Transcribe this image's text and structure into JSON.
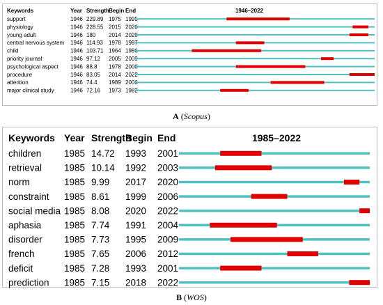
{
  "colors": {
    "baseline": "#4fc1c0",
    "burst": "#e00000"
  },
  "panels": [
    {
      "id": "a",
      "caption_letter": "A",
      "caption_source": "Scopus",
      "headers": {
        "keywords": "Keywords",
        "year": "Year",
        "strength": "Strength",
        "begin": "Begin",
        "end": "End",
        "range": "1946–2022"
      },
      "range_start": 1946,
      "range_end": 2022,
      "rows": [
        {
          "keyword": "support",
          "year": "1946",
          "strength": "229.89",
          "begin": "1975",
          "end": "1995"
        },
        {
          "keyword": "physiology",
          "year": "1946",
          "strength": "228.55",
          "begin": "2015",
          "end": "2020"
        },
        {
          "keyword": "young adult",
          "year": "1946",
          "strength": "180",
          "begin": "2014",
          "end": "2020"
        },
        {
          "keyword": "central nervous system",
          "year": "1946",
          "strength": "114.93",
          "begin": "1978",
          "end": "1987"
        },
        {
          "keyword": "child",
          "year": "1946",
          "strength": "103.71",
          "begin": "1964",
          "end": "1986"
        },
        {
          "keyword": "priority journal",
          "year": "1946",
          "strength": "97.12",
          "begin": "2005",
          "end": "2009"
        },
        {
          "keyword": "psychological aspect",
          "year": "1946",
          "strength": "88.8",
          "begin": "1978",
          "end": "2000"
        },
        {
          "keyword": "procedure",
          "year": "1946",
          "strength": "83.05",
          "begin": "2014",
          "end": "2022"
        },
        {
          "keyword": "attention",
          "year": "1946",
          "strength": "74.4",
          "begin": "1989",
          "end": "2006"
        },
        {
          "keyword": "major clinical study",
          "year": "1946",
          "strength": "72.16",
          "begin": "1973",
          "end": "1982"
        }
      ]
    },
    {
      "id": "b",
      "caption_letter": "B",
      "caption_source": "WOS",
      "headers": {
        "keywords": "Keywords",
        "year": "Year",
        "strength": "Strength",
        "begin": "Begin",
        "end": "End",
        "range": "1985–2022"
      },
      "range_start": 1985,
      "range_end": 2022,
      "rows": [
        {
          "keyword": "children",
          "year": "1985",
          "strength": "14.72",
          "begin": "1993",
          "end": "2001"
        },
        {
          "keyword": "retrieval",
          "year": "1985",
          "strength": "10.14",
          "begin": "1992",
          "end": "2003"
        },
        {
          "keyword": "norm",
          "year": "1985",
          "strength": "9.99",
          "begin": "2017",
          "end": "2020"
        },
        {
          "keyword": "constraint",
          "year": "1985",
          "strength": "8.61",
          "begin": "1999",
          "end": "2006"
        },
        {
          "keyword": "social media",
          "year": "1985",
          "strength": "8.08",
          "begin": "2020",
          "end": "2022"
        },
        {
          "keyword": "aphasia",
          "year": "1985",
          "strength": "7.74",
          "begin": "1991",
          "end": "2004"
        },
        {
          "keyword": "disorder",
          "year": "1985",
          "strength": "7.73",
          "begin": "1995",
          "end": "2009"
        },
        {
          "keyword": "french",
          "year": "1985",
          "strength": "7.65",
          "begin": "2006",
          "end": "2012"
        },
        {
          "keyword": "deficit",
          "year": "1985",
          "strength": "7.28",
          "begin": "1993",
          "end": "2001"
        },
        {
          "keyword": "prediction",
          "year": "1985",
          "strength": "7.15",
          "begin": "2018",
          "end": "2022"
        }
      ]
    }
  ],
  "chart_data": [
    {
      "type": "table",
      "title": "1946–2022",
      "columns": [
        "Keywords",
        "Year",
        "Strength",
        "Begin",
        "End"
      ],
      "x_range": [
        1946,
        2022
      ],
      "series": [
        {
          "keyword": "support",
          "year": 1946,
          "strength": 229.89,
          "begin": 1975,
          "end": 1995
        },
        {
          "keyword": "physiology",
          "year": 1946,
          "strength": 228.55,
          "begin": 2015,
          "end": 2020
        },
        {
          "keyword": "young adult",
          "year": 1946,
          "strength": 180,
          "begin": 2014,
          "end": 2020
        },
        {
          "keyword": "central nervous system",
          "year": 1946,
          "strength": 114.93,
          "begin": 1978,
          "end": 1987
        },
        {
          "keyword": "child",
          "year": 1946,
          "strength": 103.71,
          "begin": 1964,
          "end": 1986
        },
        {
          "keyword": "priority journal",
          "year": 1946,
          "strength": 97.12,
          "begin": 2005,
          "end": 2009
        },
        {
          "keyword": "psychological aspect",
          "year": 1946,
          "strength": 88.8,
          "begin": 1978,
          "end": 2000
        },
        {
          "keyword": "procedure",
          "year": 1946,
          "strength": 83.05,
          "begin": 2014,
          "end": 2022
        },
        {
          "keyword": "attention",
          "year": 1946,
          "strength": 74.4,
          "begin": 1989,
          "end": 2006
        },
        {
          "keyword": "major clinical study",
          "year": 1946,
          "strength": 72.16,
          "begin": 1973,
          "end": 1982
        }
      ]
    },
    {
      "type": "table",
      "title": "1985–2022",
      "columns": [
        "Keywords",
        "Year",
        "Strength",
        "Begin",
        "End"
      ],
      "x_range": [
        1985,
        2022
      ],
      "series": [
        {
          "keyword": "children",
          "year": 1985,
          "strength": 14.72,
          "begin": 1993,
          "end": 2001
        },
        {
          "keyword": "retrieval",
          "year": 1985,
          "strength": 10.14,
          "begin": 1992,
          "end": 2003
        },
        {
          "keyword": "norm",
          "year": 1985,
          "strength": 9.99,
          "begin": 2017,
          "end": 2020
        },
        {
          "keyword": "constraint",
          "year": 1985,
          "strength": 8.61,
          "begin": 1999,
          "end": 2006
        },
        {
          "keyword": "social media",
          "year": 1985,
          "strength": 8.08,
          "begin": 2020,
          "end": 2022
        },
        {
          "keyword": "aphasia",
          "year": 1985,
          "strength": 7.74,
          "begin": 1991,
          "end": 2004
        },
        {
          "keyword": "disorder",
          "year": 1985,
          "strength": 7.73,
          "begin": 1995,
          "end": 2009
        },
        {
          "keyword": "french",
          "year": 1985,
          "strength": 7.65,
          "begin": 2006,
          "end": 2012
        },
        {
          "keyword": "deficit",
          "year": 1985,
          "strength": 7.28,
          "begin": 1993,
          "end": 2001
        },
        {
          "keyword": "prediction",
          "year": 1985,
          "strength": 7.15,
          "begin": 2018,
          "end": 2022
        }
      ]
    }
  ]
}
